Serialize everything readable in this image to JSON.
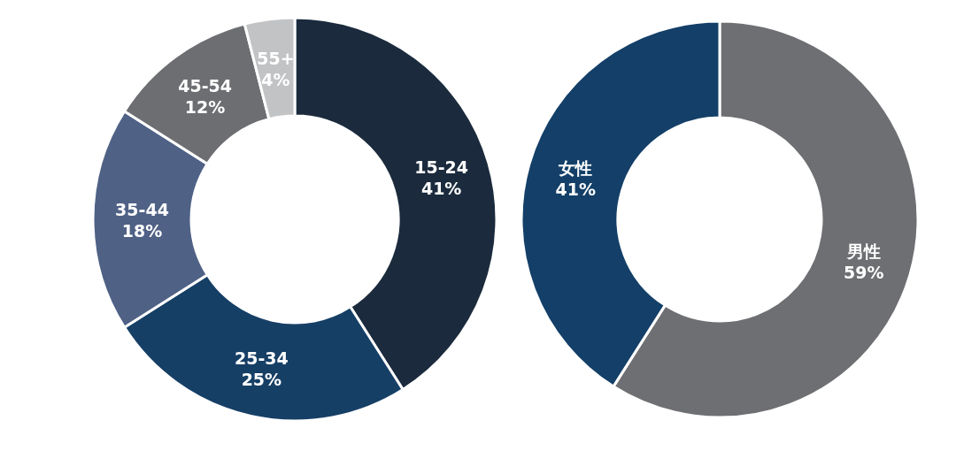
{
  "chart_data": [
    {
      "type": "donut",
      "categories": [
        "15-24",
        "25-34",
        "35-44",
        "45-54",
        "55+"
      ],
      "values": [
        41,
        25,
        18,
        12,
        4
      ],
      "value_labels": [
        "41%",
        "25%",
        "18%",
        "12%",
        "4%"
      ],
      "colors": [
        "#1b2b3d",
        "#163f66",
        "#4f6185",
        "#6d6e72",
        "#c2c3c5"
      ]
    },
    {
      "type": "donut",
      "categories": [
        "男性",
        "女性"
      ],
      "values": [
        59,
        41
      ],
      "value_labels": [
        "59%",
        "41%"
      ],
      "colors": [
        "#6e6f72",
        "#133f68"
      ]
    }
  ]
}
